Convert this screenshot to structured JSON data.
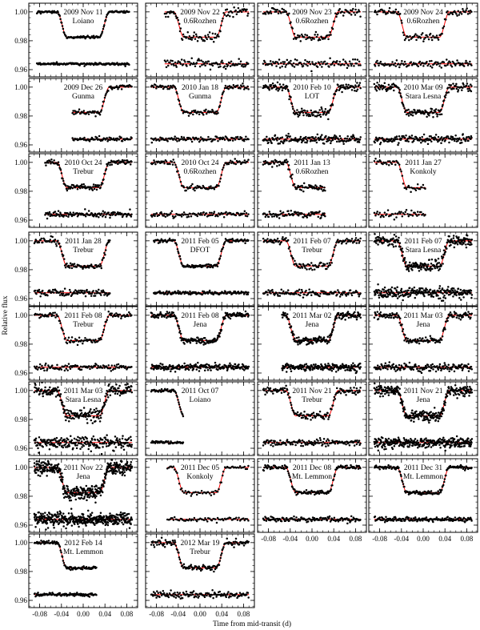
{
  "chart_data": {
    "type": "scatter",
    "ylabel": "Relative flux",
    "xlabel": "Time from mid-transit (d)",
    "xlim": [
      -0.1,
      0.1
    ],
    "ylim": [
      0.955,
      1.006
    ],
    "y_ticks": [
      0.96,
      0.98,
      1.0
    ],
    "y_tick_labels": [
      "0.96",
      "0.98",
      "1.00"
    ],
    "x_ticks": [
      -0.08,
      -0.04,
      0.0,
      0.04,
      0.08
    ],
    "x_tick_labels": [
      "-0.08",
      "-0.04",
      "0.00",
      "0.04",
      "0.08"
    ],
    "grid": false,
    "model_color": "#ff0000",
    "point_color": "#000000",
    "transit": {
      "depth": 0.0175,
      "half_width": 0.048,
      "ingress": 0.018,
      "residual_offset": 0.964
    },
    "panels": [
      {
        "date": "2009 Nov 11",
        "site": "Loiano",
        "x_range": [
          -0.085,
          0.085
        ],
        "scatter": 0.0004,
        "n_points": 150
      },
      {
        "date": "2009 Nov 22",
        "site": "0.6Rozhen",
        "x_range": [
          -0.065,
          0.09
        ],
        "scatter": 0.0014,
        "n_points": 100
      },
      {
        "date": "2009 Nov 23",
        "site": "0.6Rozhen",
        "x_range": [
          -0.09,
          0.09
        ],
        "scatter": 0.0014,
        "n_points": 110
      },
      {
        "date": "2009 Nov 24",
        "site": "0.6Rozhen",
        "x_range": [
          -0.09,
          0.09
        ],
        "scatter": 0.0014,
        "n_points": 110
      },
      {
        "date": "2009 Dec 26",
        "site": "Gunma",
        "x_range": [
          -0.02,
          0.09
        ],
        "scatter": 0.0007,
        "n_points": 80
      },
      {
        "date": "2010 Jan 18",
        "site": "Gunma",
        "x_range": [
          -0.09,
          0.09
        ],
        "scatter": 0.0008,
        "n_points": 120
      },
      {
        "date": "2010 Feb 10",
        "site": "LOT",
        "x_range": [
          -0.09,
          0.09
        ],
        "scatter": 0.0015,
        "n_points": 170
      },
      {
        "date": "2010 Mar 09",
        "site": "Stara Lesna",
        "x_range": [
          -0.09,
          0.09
        ],
        "scatter": 0.0015,
        "n_points": 170
      },
      {
        "date": "2010 Oct 24",
        "site": "Trebur",
        "x_range": [
          -0.07,
          0.09
        ],
        "scatter": 0.0009,
        "n_points": 140
      },
      {
        "date": "2010 Oct 24",
        "site": "0.6Rozhen",
        "x_range": [
          -0.09,
          0.09
        ],
        "scatter": 0.0009,
        "n_points": 110
      },
      {
        "date": "2011 Jan 13",
        "site": "0.6Rozhen",
        "x_range": [
          -0.09,
          0.025
        ],
        "scatter": 0.0012,
        "n_points": 90
      },
      {
        "date": "2011 Jan 27",
        "site": "Konkoly",
        "x_range": [
          -0.09,
          0.005
        ],
        "scatter": 0.0012,
        "n_points": 50
      },
      {
        "date": "2011 Jan 28",
        "site": "Trebur",
        "x_range": [
          -0.09,
          0.05
        ],
        "scatter": 0.0012,
        "n_points": 110
      },
      {
        "date": "2011 Feb 05",
        "site": "DFOT",
        "x_range": [
          -0.085,
          0.09
        ],
        "scatter": 0.0006,
        "n_points": 150
      },
      {
        "date": "2011 Feb 07",
        "site": "Trebur",
        "x_range": [
          -0.09,
          0.09
        ],
        "scatter": 0.0012,
        "n_points": 130
      },
      {
        "date": "2011 Feb 07",
        "site": "Stara Lesna",
        "x_range": [
          -0.09,
          0.09
        ],
        "scatter": 0.0018,
        "n_points": 260
      },
      {
        "date": "2011 Feb 08",
        "site": "Trebur",
        "x_range": [
          -0.09,
          0.09
        ],
        "scatter": 0.0011,
        "n_points": 120
      },
      {
        "date": "2011 Feb 08",
        "site": "Jena",
        "x_range": [
          -0.09,
          0.09
        ],
        "scatter": 0.0011,
        "n_points": 220
      },
      {
        "date": "2011 Mar 02",
        "site": "Jena",
        "x_range": [
          -0.055,
          0.09
        ],
        "scatter": 0.0012,
        "n_points": 200
      },
      {
        "date": "2011 Mar 03",
        "site": "Jena",
        "x_range": [
          -0.09,
          0.09
        ],
        "scatter": 0.0012,
        "n_points": 170
      },
      {
        "date": "2011 Mar 03",
        "site": "Stara Lesna",
        "x_range": [
          -0.09,
          0.09
        ],
        "scatter": 0.0022,
        "n_points": 240
      },
      {
        "date": "2011 Oct 07",
        "site": "Loiano",
        "x_range": [
          -0.09,
          -0.03
        ],
        "scatter": 0.0005,
        "n_points": 50
      },
      {
        "date": "2011 Nov 21",
        "site": "Trebur",
        "x_range": [
          -0.09,
          0.09
        ],
        "scatter": 0.0012,
        "n_points": 150
      },
      {
        "date": "2011 Nov 21",
        "site": "Jena",
        "x_range": [
          -0.09,
          0.09
        ],
        "scatter": 0.0018,
        "n_points": 320
      },
      {
        "date": "2011 Nov 22",
        "site": "Jena",
        "x_range": [
          -0.09,
          0.09
        ],
        "scatter": 0.0022,
        "n_points": 420
      },
      {
        "date": "2011 Dec 05",
        "site": "Konkoly",
        "x_range": [
          -0.06,
          0.09
        ],
        "scatter": 0.0008,
        "n_points": 70
      },
      {
        "date": "2011 Dec 08",
        "site": "Mt. Lemmon",
        "x_range": [
          -0.09,
          0.09
        ],
        "scatter": 0.0008,
        "n_points": 150
      },
      {
        "date": "2011 Dec 31",
        "site": "Mt. Lemmon",
        "x_range": [
          -0.09,
          0.09
        ],
        "scatter": 0.0007,
        "n_points": 160
      },
      {
        "date": "2012 Feb 14",
        "site": "Mt. Lemmon",
        "x_range": [
          -0.09,
          0.025
        ],
        "scatter": 0.0006,
        "n_points": 100
      },
      {
        "date": "2012 Mar 19",
        "site": "Trebur",
        "x_range": [
          -0.09,
          0.09
        ],
        "scatter": 0.0011,
        "n_points": 150
      }
    ]
  }
}
